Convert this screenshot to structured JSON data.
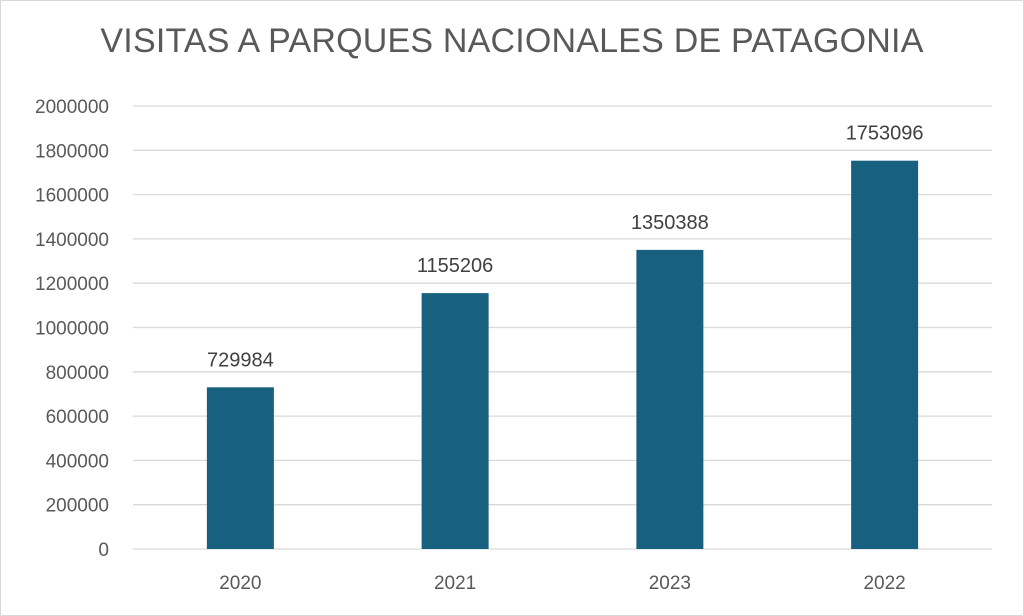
{
  "chart_data": {
    "type": "bar",
    "title": "VISITAS A PARQUES NACIONALES DE PATAGONIA",
    "xlabel": "",
    "ylabel": "",
    "categories": [
      "2020",
      "2021",
      "2023",
      "2022"
    ],
    "values": [
      729984,
      1155206,
      1350388,
      1753096
    ],
    "data_labels": [
      "729984",
      "1155206",
      "1350388",
      "1753096"
    ],
    "ylim": [
      0,
      2000000
    ],
    "y_ticks": [
      0,
      200000,
      400000,
      600000,
      800000,
      1000000,
      1200000,
      1400000,
      1600000,
      1800000,
      2000000
    ],
    "y_tick_labels": [
      "0",
      "200000",
      "400000",
      "600000",
      "800000",
      "1000000",
      "1200000",
      "1400000",
      "1600000",
      "1800000",
      "2000000"
    ],
    "grid": true,
    "legend": "none",
    "bar_color": "#17607F",
    "grid_color": "#d9d9d9"
  }
}
